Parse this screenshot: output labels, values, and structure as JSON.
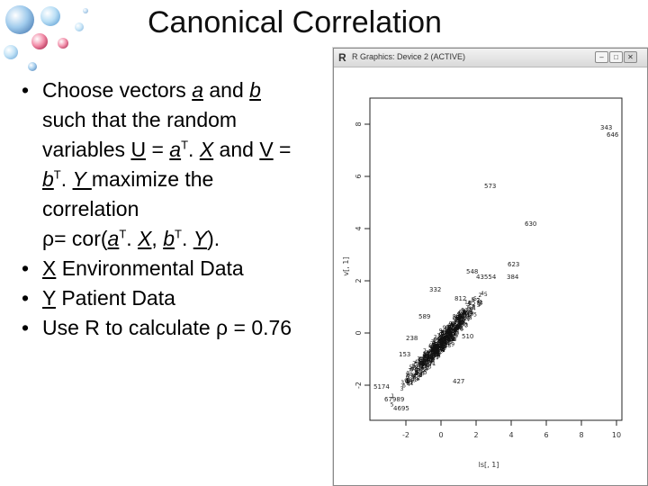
{
  "slide": {
    "title": "Canonical Correlation",
    "bullets": {
      "b1": {
        "l1_a": "Choose  vectors ",
        "l1_a_var": "a",
        "l1_mid": " and ",
        "l1_b_var": "b",
        "l2": "such that the random",
        "l3_a": "variables ",
        "l3_U": "U",
        "l3_eq": " = ",
        "l3_avar": "a",
        "l3_T": "T",
        "l3_dot": ". ",
        "l3_X": "X",
        "l3_and": " and ",
        "l3_V": "V",
        "l3_eq2": " =",
        "l4_b": "b",
        "l4_T": "T",
        "l4_dot": ". ",
        "l4_Y": "Y ",
        "l4_rest": "maximize the",
        "l5": "correlation",
        "l6_rho": "ρ",
        "l6_eq": "= cor(",
        "l6_a": "a",
        "l6_T1": "T",
        "l6_dot1": ". ",
        "l6_X": "X",
        "l6_comma": ", ",
        "l6_b": "b",
        "l6_T2": "T",
        "l6_dot2": ". ",
        "l6_Y": "Y",
        "l6_end": ")."
      },
      "b2": {
        "var": "X",
        "text": " Environmental Data"
      },
      "b3": {
        "var": "Y",
        "text": " Patient Data"
      },
      "b4": {
        "text": "Use R to calculate ρ = 0.76"
      }
    }
  },
  "window": {
    "app_icon": "R",
    "title": "R Graphics: Device 2 (ACTIVE)",
    "buttons": {
      "minimize": "–",
      "maximize": "□",
      "close": "✕"
    }
  },
  "plot": {
    "xlabel": "ls[, 1]",
    "ylabel": "v[, 1]",
    "x_ticks": [
      "-2",
      "0",
      "2",
      "4",
      "6",
      "8",
      "10"
    ],
    "y_ticks": [
      "-2",
      "0",
      "2",
      "4",
      "6",
      "8"
    ],
    "labels": [
      "343",
      "646",
      "573",
      "630",
      "623",
      "548",
      "43554",
      "384"
    ],
    "labels_lower": [
      "5174",
      "67989",
      "4695",
      "427",
      "153"
    ],
    "cloud_labels": [
      "332",
      "589",
      "510",
      "238",
      "441",
      "812",
      "356"
    ]
  }
}
